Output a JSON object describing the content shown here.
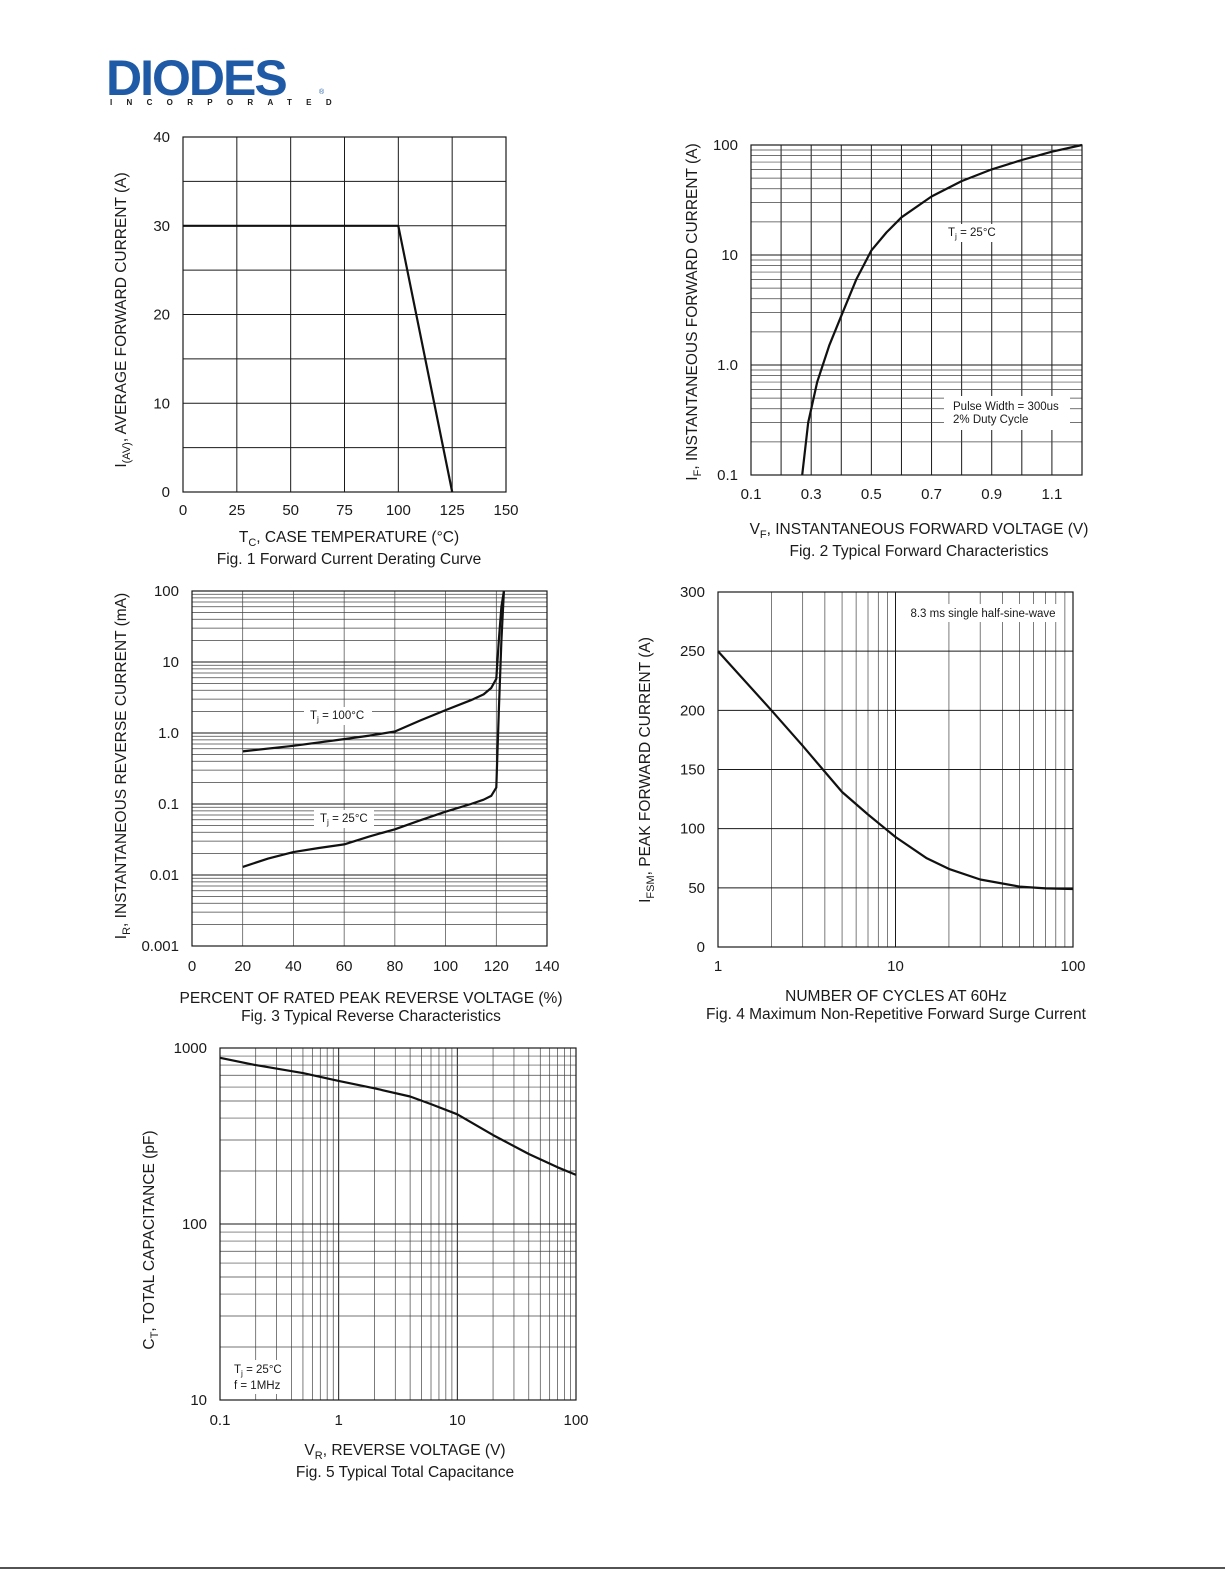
{
  "logo": {
    "main": "DIODES",
    "sub": "INCORPORATED",
    "registered": "®"
  },
  "charts": {
    "fig1": {
      "ylab_main": "I",
      "ylab_sub": "(AV)",
      "ylab_rest": ", AVERAGE FORWARD CURRENT (A)",
      "xlab_main": "T",
      "xlab_sub": "C",
      "xlab_rest": ", CASE TEMPERATURE (°C)",
      "caption": "Fig. 1  Forward Current Derating Curve",
      "xticks": [
        "0",
        "25",
        "50",
        "75",
        "100",
        "125",
        "150"
      ],
      "yticks": [
        "0",
        "10",
        "20",
        "30",
        "40"
      ]
    },
    "fig2": {
      "ylab_main": "I",
      "ylab_sub": "F",
      "ylab_rest": ", INSTANTANEOUS FORWARD CURRENT (A)",
      "xlab_main": "V",
      "xlab_sub": "F",
      "xlab_rest": ", INSTANTANEOUS FORWARD VOLTAGE (V)",
      "caption": "Fig. 2  Typical Forward Characteristics",
      "xticks": [
        "0.1",
        "0.3",
        "0.5",
        "0.7",
        "0.9",
        "1.1"
      ],
      "yticks": [
        "0.1",
        "1.0",
        "10",
        "100"
      ],
      "ann_tj_main": "T",
      "ann_tj_sub": "j",
      "ann_tj_rest": " = 25°C",
      "ann_pulse1": "Pulse Width = 300us",
      "ann_pulse2": "2% Duty Cycle"
    },
    "fig3": {
      "ylab_main": "I",
      "ylab_sub": "R",
      "ylab_rest": ", INSTANTANEOUS REVERSE CURRENT (mA)",
      "xlab": "PERCENT OF RATED PEAK REVERSE VOLTAGE (%)",
      "caption": "Fig. 3  Typical Reverse Characteristics",
      "xticks": [
        "0",
        "20",
        "40",
        "60",
        "80",
        "100",
        "120",
        "140"
      ],
      "yticks": [
        "0.001",
        "0.01",
        "0.1",
        "1.0",
        "10",
        "100"
      ],
      "ann100_main": "T",
      "ann100_sub": "j",
      "ann100_rest": " = 100°C",
      "ann25_main": "T",
      "ann25_sub": "j",
      "ann25_rest": " = 25°C"
    },
    "fig4": {
      "ylab_main": "I",
      "ylab_sub": "FSM",
      "ylab_rest": ", PEAK FORWARD CURRENT (A)",
      "xlab": "NUMBER OF CYCLES AT 60Hz",
      "caption": "Fig. 4  Maximum Non-Repetitive Forward Surge Current",
      "xticks": [
        "1",
        "10",
        "100"
      ],
      "yticks": [
        "0",
        "50",
        "100",
        "150",
        "200",
        "250",
        "300"
      ],
      "ann": "8.3 ms single half-sine-wave"
    },
    "fig5": {
      "ylab_main": "C",
      "ylab_sub": "T",
      "ylab_rest": ", TOTAL CAPACITANCE (pF)",
      "xlab_main": "V",
      "xlab_sub": "R",
      "xlab_rest": ", REVERSE VOLTAGE (V)",
      "caption": "Fig. 5  Typical Total Capacitance",
      "xticks": [
        "0.1",
        "1",
        "10",
        "100"
      ],
      "yticks": [
        "10",
        "100",
        "1000"
      ],
      "ann1_main": "T",
      "ann1_sub": "j",
      "ann1_rest": " = 25°C",
      "ann2": "f = 1MHz"
    }
  },
  "chart_data": [
    {
      "type": "line",
      "title": "Fig. 1  Forward Current Derating Curve",
      "xlabel": "TC, CASE TEMPERATURE (°C)",
      "ylabel": "I(AV), AVERAGE FORWARD CURRENT (A)",
      "xlim": [
        0,
        150
      ],
      "ylim": [
        0,
        40
      ],
      "grid": true,
      "x": [
        0,
        100,
        125
      ],
      "y": [
        30,
        30,
        0
      ]
    },
    {
      "type": "line",
      "title": "Fig. 2  Typical Forward Characteristics",
      "xlabel": "VF, INSTANTANEOUS FORWARD VOLTAGE (V)",
      "ylabel": "IF, INSTANTANEOUS FORWARD CURRENT (A)",
      "xlim": [
        0.1,
        1.2
      ],
      "ylim": [
        0.1,
        100
      ],
      "yscale": "log",
      "grid": true,
      "annotations": [
        "Tj = 25°C",
        "Pulse Width = 300us",
        "2% Duty Cycle"
      ],
      "x": [
        0.27,
        0.29,
        0.32,
        0.36,
        0.4,
        0.45,
        0.5,
        0.55,
        0.6,
        0.7,
        0.8,
        0.9,
        1.0,
        1.1,
        1.2
      ],
      "y": [
        0.1,
        0.3,
        0.7,
        1.5,
        2.8,
        6.0,
        11,
        16,
        22,
        34,
        47,
        60,
        73,
        87,
        100
      ]
    },
    {
      "type": "line",
      "title": "Fig. 3  Typical Reverse Characteristics",
      "xlabel": "PERCENT OF RATED PEAK REVERSE VOLTAGE (%)",
      "ylabel": "IR, INSTANTANEOUS REVERSE CURRENT (mA)",
      "xlim": [
        0,
        140
      ],
      "ylim": [
        0.001,
        100
      ],
      "yscale": "log",
      "grid": true,
      "series": [
        {
          "name": "Tj = 100°C",
          "x": [
            20,
            40,
            60,
            70,
            80,
            90,
            100,
            110,
            115,
            118,
            120,
            121,
            122,
            123
          ],
          "y": [
            0.55,
            0.66,
            0.82,
            0.92,
            1.05,
            1.5,
            2.1,
            2.9,
            3.5,
            4.3,
            5.8,
            20,
            60,
            100
          ]
        },
        {
          "name": "Tj = 25°C",
          "x": [
            20,
            30,
            40,
            50,
            60,
            70,
            80,
            90,
            100,
            110,
            115,
            118,
            120,
            121,
            122,
            123
          ],
          "y": [
            0.013,
            0.017,
            0.021,
            0.024,
            0.027,
            0.035,
            0.044,
            0.059,
            0.078,
            0.1,
            0.115,
            0.13,
            0.17,
            2,
            20,
            100
          ]
        }
      ]
    },
    {
      "type": "line",
      "title": "Fig. 4  Maximum Non-Repetitive Forward Surge Current",
      "xlabel": "NUMBER OF CYCLES AT 60Hz",
      "ylabel": "IFSM, PEAK FORWARD CURRENT (A)",
      "xlim": [
        1,
        100
      ],
      "ylim": [
        0,
        300
      ],
      "xscale": "log",
      "grid": true,
      "annotations": [
        "8.3 ms single half-sine-wave"
      ],
      "x": [
        1,
        2,
        3,
        4,
        5,
        7,
        10,
        15,
        20,
        30,
        50,
        70,
        100
      ],
      "y": [
        250,
        200,
        170,
        148,
        131,
        112,
        93,
        75,
        66,
        57,
        51,
        49.5,
        49
      ]
    },
    {
      "type": "line",
      "title": "Fig. 5  Typical Total Capacitance",
      "xlabel": "VR, REVERSE VOLTAGE (V)",
      "ylabel": "CT, TOTAL CAPACITANCE (pF)",
      "xlim": [
        0.1,
        100
      ],
      "ylim": [
        10,
        1000
      ],
      "xscale": "log",
      "yscale": "log",
      "grid": true,
      "annotations": [
        "Tj = 25°C",
        "f = 1MHz"
      ],
      "x": [
        0.1,
        0.2,
        0.5,
        1,
        2,
        4,
        6,
        10,
        20,
        40,
        70,
        100
      ],
      "y": [
        880,
        800,
        720,
        650,
        590,
        530,
        480,
        420,
        320,
        250,
        210,
        190
      ]
    }
  ]
}
